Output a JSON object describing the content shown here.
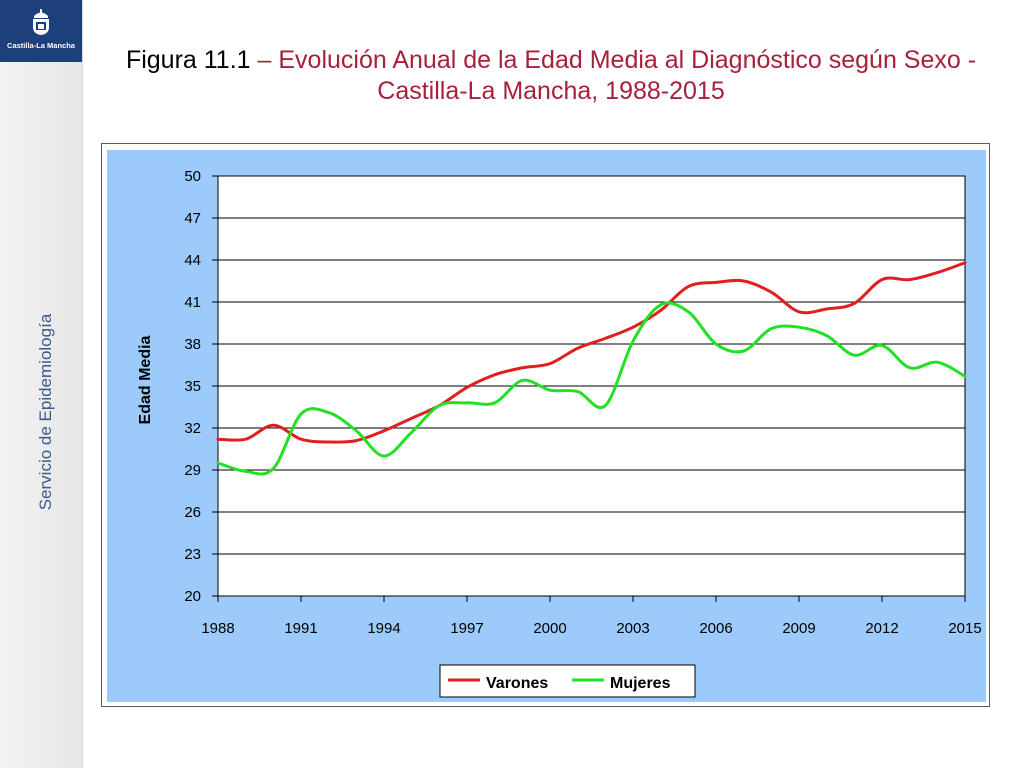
{
  "sidebar": {
    "logo_text": "Castilla-La Mancha",
    "vertical_label": "Servicio de Epidemiología",
    "color": "#1d3f7a"
  },
  "header": {
    "figure_label": "Figura 11.1",
    "dash": "–",
    "title": "Evolución Anual de la Edad Media al Diagnóstico según Sexo - Castilla-La Mancha, 1988-2015"
  },
  "chart_data": {
    "type": "line",
    "title": "",
    "xlabel": "",
    "ylabel": "Edad Media",
    "xlim": [
      1988,
      2015
    ],
    "ylim": [
      20,
      50
    ],
    "x_ticks": [
      1988,
      1991,
      1994,
      1997,
      2000,
      2003,
      2006,
      2009,
      2012,
      2015
    ],
    "y_ticks": [
      20,
      23,
      26,
      29,
      32,
      35,
      38,
      41,
      44,
      47,
      50
    ],
    "grid": true,
    "legend": "bottom",
    "background_color": "#9ccafa",
    "x": [
      1988,
      1989,
      1990,
      1991,
      1992,
      1993,
      1994,
      1995,
      1996,
      1997,
      1998,
      1999,
      2000,
      2001,
      2002,
      2003,
      2004,
      2005,
      2006,
      2007,
      2008,
      2009,
      2010,
      2011,
      2012,
      2013,
      2014,
      2015
    ],
    "series": [
      {
        "name": "Varones",
        "color": "#e02020",
        "values": [
          31.2,
          31.2,
          32.2,
          31.2,
          31.0,
          31.1,
          31.8,
          32.7,
          33.6,
          34.9,
          35.8,
          36.3,
          36.6,
          37.7,
          38.4,
          39.2,
          40.4,
          42.1,
          42.4,
          42.5,
          41.7,
          40.3,
          40.5,
          40.9,
          42.6,
          42.6,
          43.1,
          43.8
        ]
      },
      {
        "name": "Mujeres",
        "color": "#22e022",
        "values": [
          29.5,
          28.9,
          29.1,
          33.0,
          33.1,
          31.8,
          30.0,
          31.7,
          33.6,
          33.8,
          33.8,
          35.4,
          34.7,
          34.6,
          33.6,
          38.2,
          40.8,
          40.3,
          38.0,
          37.5,
          39.1,
          39.2,
          38.6,
          37.2,
          37.9,
          36.3,
          36.7,
          35.7
        ]
      }
    ]
  }
}
